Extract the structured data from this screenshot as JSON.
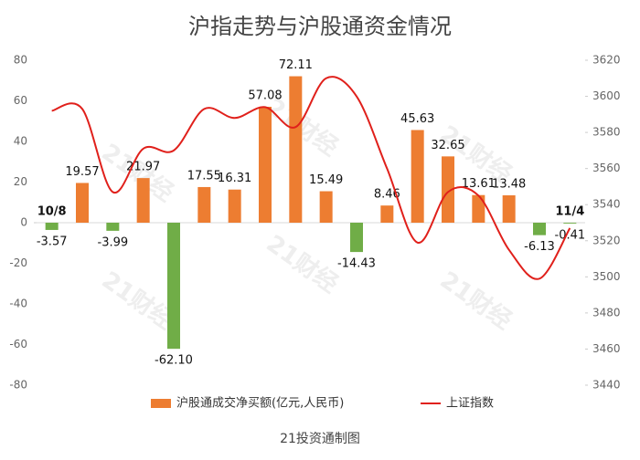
{
  "chart_data": {
    "type": "bar_line",
    "title": "沪指走势与沪股通资金情况",
    "source": "21投资通制图",
    "watermark": "21财经",
    "categories": [
      "10/8",
      null,
      null,
      null,
      null,
      null,
      null,
      null,
      null,
      null,
      null,
      null,
      null,
      null,
      null,
      null,
      null,
      "11/4"
    ],
    "series": [
      {
        "name": "沪股通成交净买额(亿元,人民币)",
        "type": "bar",
        "color": "#ed7d31",
        "negative_color": "#70ad47",
        "values": [
          -3.57,
          19.57,
          -3.99,
          21.97,
          -62.1,
          17.55,
          16.31,
          57.08,
          72.11,
          15.49,
          -14.43,
          8.46,
          45.63,
          32.65,
          13.61,
          13.48,
          -6.13,
          -0.41
        ],
        "value_labels": [
          "-3.57",
          "19.57",
          "-3.99",
          "21.97",
          "-62.10",
          "17.55",
          "16.31",
          "57.08",
          "72.11",
          "15.49",
          "-14.43",
          "8.46",
          "45.63",
          "32.65",
          "13.61",
          "13.48",
          "-6.13",
          "-0.41"
        ]
      },
      {
        "name": "上证指数",
        "type": "line",
        "axis": "y2",
        "color": "#e0201b",
        "values": [
          3592,
          3593,
          3547,
          3571,
          3570,
          3593,
          3588,
          3594,
          3583,
          3610,
          3600,
          3560,
          3519,
          3547,
          3545,
          3515,
          3499,
          3527
        ]
      }
    ],
    "ylim": [
      -80,
      80
    ],
    "yticks": [
      -80,
      -60,
      -40,
      -20,
      0,
      20,
      40,
      60,
      80
    ],
    "y2lim": [
      3440,
      3620
    ],
    "y2ticks": [
      3440,
      3460,
      3480,
      3500,
      3520,
      3540,
      3560,
      3580,
      3600,
      3620
    ],
    "legend": "bottom"
  }
}
